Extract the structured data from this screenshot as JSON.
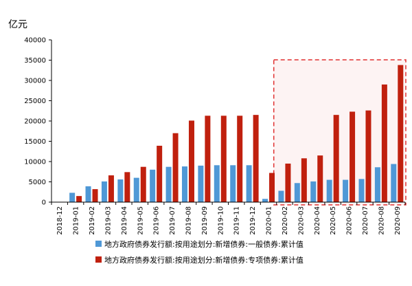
{
  "chart_data": {
    "type": "bar",
    "unit_label": "亿元",
    "categories": [
      "2018-12",
      "2019-01",
      "2019-02",
      "2019-03",
      "2019-04",
      "2019-05",
      "2019-06",
      "2019-07",
      "2019-08",
      "2019-09",
      "2019-10",
      "2019-11",
      "2019-12",
      "2020-01",
      "2020-02",
      "2020-03",
      "2020-04",
      "2020-05",
      "2020-06",
      "2020-07",
      "2020-08",
      "2020-09"
    ],
    "series": [
      {
        "name": "地方政府债券发行额:按用途划分:新增债券:一般债券:累计值",
        "color": "#4f98d6",
        "values": [
          null,
          2300,
          3900,
          5100,
          5600,
          6000,
          8000,
          8700,
          8800,
          9000,
          9100,
          9100,
          9100,
          800,
          2800,
          4700,
          5100,
          5500,
          5500,
          5700,
          8600,
          9400
        ]
      },
      {
        "name": "地方政府债券发行额:按用途划分:新增债券:专项债券:累计值",
        "color": "#c0200e",
        "values": [
          null,
          1500,
          3200,
          6600,
          7400,
          8700,
          13900,
          17000,
          20100,
          21300,
          21300,
          21300,
          21500,
          7200,
          9500,
          10800,
          11500,
          21500,
          22300,
          22600,
          29000,
          33800
        ]
      }
    ],
    "yticks": [
      0,
      5000,
      10000,
      15000,
      20000,
      25000,
      30000,
      35000,
      40000
    ],
    "ylim": [
      0,
      40000
    ],
    "highlight": {
      "from": "2020-02",
      "to": "2020-09",
      "color": "#e03030"
    },
    "legend_position": "bottom"
  }
}
